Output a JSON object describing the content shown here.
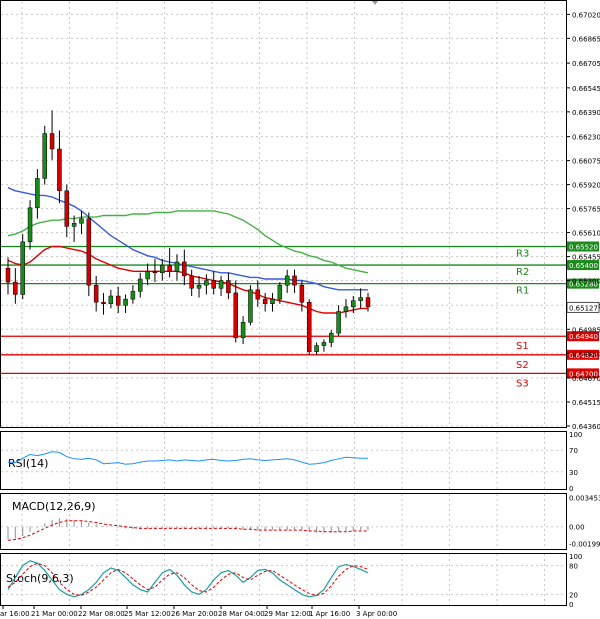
{
  "chart_data": {
    "type": "candlestick",
    "instrument_note": "AUDUSD-style 4h candles",
    "main": {
      "price_ticks": [
        0.6702,
        0.66865,
        0.66705,
        0.66545,
        0.6639,
        0.6623,
        0.66075,
        0.6592,
        0.65765,
        0.6561,
        0.65455,
        0.653,
        0.6514,
        0.64985,
        0.6483,
        0.6467,
        0.64515,
        0.6436
      ],
      "ylim": [
        0.6436,
        0.671
      ],
      "current_price": "0.65127",
      "levels": [
        {
          "name": "R3",
          "value": 0.6552,
          "label": "0.65520",
          "color": "#1a8a1a"
        },
        {
          "name": "R2",
          "value": 0.654,
          "label": "0.65400",
          "color": "#1a8a1a"
        },
        {
          "name": "R1",
          "value": 0.6528,
          "label": "0.65280",
          "color": "#1a8a1a"
        },
        {
          "name": "S1",
          "value": 0.6494,
          "label": "0.64940",
          "color": "#e00000"
        },
        {
          "name": "S2",
          "value": 0.6482,
          "label": "0.64820",
          "color": "#e00000"
        },
        {
          "name": "S3",
          "value": 0.647,
          "label": "0.64700",
          "color": "#e00000"
        }
      ],
      "candles": [
        [
          0.6538,
          0.6545,
          0.6521,
          0.6529
        ],
        [
          0.6529,
          0.6538,
          0.6515,
          0.6521
        ],
        [
          0.6521,
          0.656,
          0.6518,
          0.6555
        ],
        [
          0.6555,
          0.6582,
          0.655,
          0.6577
        ],
        [
          0.6577,
          0.6602,
          0.657,
          0.6596
        ],
        [
          0.6596,
          0.663,
          0.6592,
          0.6625
        ],
        [
          0.6625,
          0.664,
          0.6608,
          0.6615
        ],
        [
          0.6615,
          0.6627,
          0.658,
          0.6588
        ],
        [
          0.6588,
          0.6592,
          0.6558,
          0.6565
        ],
        [
          0.6565,
          0.6572,
          0.6555,
          0.6567
        ],
        [
          0.6567,
          0.6575,
          0.656,
          0.657
        ],
        [
          0.657,
          0.6574,
          0.652,
          0.6527
        ],
        [
          0.6527,
          0.6533,
          0.651,
          0.6516
        ],
        [
          0.6516,
          0.6522,
          0.6508,
          0.6515
        ],
        [
          0.6515,
          0.6524,
          0.6512,
          0.652
        ],
        [
          0.652,
          0.6526,
          0.6509,
          0.6514
        ],
        [
          0.6514,
          0.6521,
          0.6509,
          0.6518
        ],
        [
          0.6518,
          0.6527,
          0.6515,
          0.6523
        ],
        [
          0.6523,
          0.6535,
          0.6519,
          0.6531
        ],
        [
          0.6531,
          0.6541,
          0.6527,
          0.6536
        ],
        [
          0.6536,
          0.6544,
          0.6529,
          0.6535
        ],
        [
          0.6535,
          0.6544,
          0.653,
          0.654
        ],
        [
          0.654,
          0.6551,
          0.6532,
          0.6536
        ],
        [
          0.6536,
          0.6547,
          0.653,
          0.6542
        ],
        [
          0.6542,
          0.655,
          0.6527,
          0.6533
        ],
        [
          0.6533,
          0.6537,
          0.652,
          0.6525
        ],
        [
          0.6525,
          0.6533,
          0.6519,
          0.6527
        ],
        [
          0.6527,
          0.6534,
          0.6521,
          0.653
        ],
        [
          0.653,
          0.6536,
          0.6521,
          0.6525
        ],
        [
          0.6525,
          0.6533,
          0.652,
          0.653
        ],
        [
          0.653,
          0.6535,
          0.6518,
          0.6522
        ],
        [
          0.6522,
          0.653,
          0.649,
          0.6493
        ],
        [
          0.6493,
          0.6507,
          0.6489,
          0.6503
        ],
        [
          0.6503,
          0.6527,
          0.6501,
          0.6524
        ],
        [
          0.6524,
          0.653,
          0.6513,
          0.6518
        ],
        [
          0.6518,
          0.6522,
          0.651,
          0.6515
        ],
        [
          0.6515,
          0.6522,
          0.651,
          0.6518
        ],
        [
          0.6518,
          0.6529,
          0.6515,
          0.6527
        ],
        [
          0.6527,
          0.6537,
          0.6522,
          0.6533
        ],
        [
          0.6533,
          0.6537,
          0.6522,
          0.6527
        ],
        [
          0.6527,
          0.653,
          0.651,
          0.6516
        ],
        [
          0.6516,
          0.6518,
          0.6482,
          0.6484
        ],
        [
          0.6484,
          0.649,
          0.6482,
          0.6488
        ],
        [
          0.6488,
          0.6492,
          0.6484,
          0.649
        ],
        [
          0.649,
          0.6498,
          0.6487,
          0.6496
        ],
        [
          0.6496,
          0.6514,
          0.6494,
          0.651
        ],
        [
          0.651,
          0.6518,
          0.6506,
          0.6513
        ],
        [
          0.6513,
          0.652,
          0.6509,
          0.6517
        ],
        [
          0.6517,
          0.6525,
          0.6512,
          0.6519
        ],
        [
          0.6519,
          0.6522,
          0.651,
          0.6513
        ]
      ],
      "ma_red": [
        0.6543,
        0.6541,
        0.654,
        0.6542,
        0.6546,
        0.655,
        0.6552,
        0.6552,
        0.6551,
        0.655,
        0.6549,
        0.6547,
        0.6544,
        0.6542,
        0.654,
        0.6538,
        0.6537,
        0.6536,
        0.6536,
        0.6536,
        0.6536,
        0.6536,
        0.6536,
        0.6536,
        0.6535,
        0.6533,
        0.6532,
        0.6531,
        0.653,
        0.6529,
        0.6528,
        0.6526,
        0.6524,
        0.6523,
        0.6521,
        0.6519,
        0.6518,
        0.6517,
        0.6516,
        0.6515,
        0.6514,
        0.6512,
        0.651,
        0.6509,
        0.6509,
        0.6509,
        0.651,
        0.6511,
        0.6512,
        0.6512
      ],
      "ma_blue": [
        0.659,
        0.6588,
        0.6587,
        0.6586,
        0.6585,
        0.6585,
        0.6584,
        0.6582,
        0.658,
        0.6578,
        0.6575,
        0.6571,
        0.6567,
        0.6563,
        0.6559,
        0.6556,
        0.6553,
        0.655,
        0.6548,
        0.6546,
        0.6545,
        0.6543,
        0.6542,
        0.6541,
        0.654,
        0.6539,
        0.6538,
        0.6537,
        0.6536,
        0.6535,
        0.6535,
        0.6534,
        0.6533,
        0.6532,
        0.6532,
        0.6531,
        0.6531,
        0.6531,
        0.6531,
        0.653,
        0.653,
        0.6529,
        0.6528,
        0.6526,
        0.6525,
        0.6524,
        0.6524,
        0.6524,
        0.6524,
        0.6524
      ],
      "ma_green": [
        0.6559,
        0.656,
        0.6562,
        0.6565,
        0.6567,
        0.6568,
        0.6569,
        0.6569,
        0.657,
        0.657,
        0.6571,
        0.6571,
        0.6571,
        0.6572,
        0.6572,
        0.6572,
        0.6572,
        0.6573,
        0.6573,
        0.6573,
        0.6574,
        0.6574,
        0.6574,
        0.6575,
        0.6575,
        0.6575,
        0.6575,
        0.6575,
        0.6575,
        0.6574,
        0.6573,
        0.6571,
        0.6569,
        0.6566,
        0.6563,
        0.6559,
        0.6556,
        0.6553,
        0.6551,
        0.6549,
        0.6548,
        0.6546,
        0.6545,
        0.6543,
        0.6542,
        0.654,
        0.6538,
        0.6537,
        0.6536,
        0.6535
      ]
    },
    "x_labels": [
      "ar 16:00",
      "21 Mar 00:00",
      "22 Mar 08:00",
      "25 Mar 12:00",
      "26 Mar 20:00",
      "28 Mar 04:00",
      "29 Mar 12:00",
      "1 Apr 16:00",
      "3 Apr 00:00"
    ],
    "rsi": {
      "label": "RSI(14)",
      "ticks": [
        "100",
        "70",
        "30",
        "0"
      ],
      "values": [
        48,
        47,
        55,
        62,
        60,
        63,
        67,
        66,
        58,
        54,
        53,
        55,
        52,
        45,
        46,
        47,
        44,
        45,
        48,
        50,
        50,
        51,
        52,
        50,
        52,
        51,
        50,
        52,
        53,
        51,
        50,
        51,
        53,
        54,
        52,
        51,
        52,
        53,
        54,
        52,
        48,
        44,
        45,
        47,
        51,
        54,
        57,
        56,
        55,
        55
      ]
    },
    "macd": {
      "label": "MACD(12,26,9)",
      "ticks": [
        "0.003453",
        "0.00",
        "-0.001999"
      ],
      "range": [
        -0.0025,
        0.0036
      ],
      "hist": [
        -0.0015,
        -0.0014,
        -0.0011,
        -0.0006,
        -0.0001,
        0.0004,
        0.0008,
        0.001,
        0.0009,
        0.0008,
        0.0007,
        0.0005,
        0.0003,
        0.0001,
        0.0,
        -0.0001,
        -0.0002,
        -0.0003,
        -0.0003,
        -0.0003,
        -0.0003,
        -0.0003,
        -0.0002,
        -0.0002,
        -0.0002,
        -0.0002,
        -0.0002,
        -0.0002,
        -0.0002,
        -0.0002,
        -0.0002,
        -0.0003,
        -0.0004,
        -0.0004,
        -0.0004,
        -0.0004,
        -0.0004,
        -0.0004,
        -0.0004,
        -0.0004,
        -0.0004,
        -0.0006,
        -0.0007,
        -0.0007,
        -0.0007,
        -0.0006,
        -0.0005,
        -0.0005,
        -0.0004,
        -0.0004
      ],
      "signal": [
        -0.0016,
        -0.0015,
        -0.0013,
        -0.001,
        -0.0006,
        -0.0002,
        0.0002,
        0.0005,
        0.0007,
        0.0007,
        0.0007,
        0.0006,
        0.0005,
        0.0003,
        0.0002,
        0.0001,
        0.0,
        -0.0001,
        -0.0002,
        -0.0002,
        -0.0002,
        -0.0002,
        -0.0002,
        -0.0002,
        -0.0002,
        -0.0002,
        -0.0002,
        -0.0002,
        -0.0002,
        -0.0002,
        -0.0002,
        -0.0002,
        -0.0003,
        -0.0003,
        -0.0004,
        -0.0004,
        -0.0004,
        -0.0004,
        -0.0004,
        -0.0004,
        -0.0004,
        -0.0005,
        -0.0005,
        -0.0006,
        -0.0006,
        -0.0006,
        -0.0006,
        -0.0005,
        -0.0005,
        -0.0005
      ]
    },
    "stoch": {
      "label": "Stoch(9,6,3)",
      "ticks": [
        "100",
        "80",
        "20",
        "0"
      ],
      "k": [
        30,
        55,
        80,
        90,
        85,
        70,
        50,
        30,
        20,
        15,
        20,
        30,
        45,
        65,
        75,
        70,
        55,
        40,
        30,
        25,
        45,
        65,
        72,
        60,
        40,
        25,
        20,
        30,
        50,
        65,
        70,
        60,
        45,
        55,
        70,
        72,
        65,
        50,
        40,
        30,
        20,
        15,
        18,
        30,
        55,
        78,
        82,
        78,
        72,
        65
      ],
      "d": [
        35,
        45,
        62,
        78,
        85,
        80,
        65,
        45,
        30,
        20,
        18,
        25,
        35,
        50,
        65,
        72,
        65,
        52,
        40,
        30,
        35,
        50,
        62,
        65,
        55,
        40,
        28,
        25,
        35,
        50,
        62,
        65,
        55,
        50,
        60,
        68,
        70,
        60,
        50,
        40,
        30,
        22,
        18,
        22,
        38,
        58,
        72,
        80,
        78,
        72
      ]
    }
  }
}
